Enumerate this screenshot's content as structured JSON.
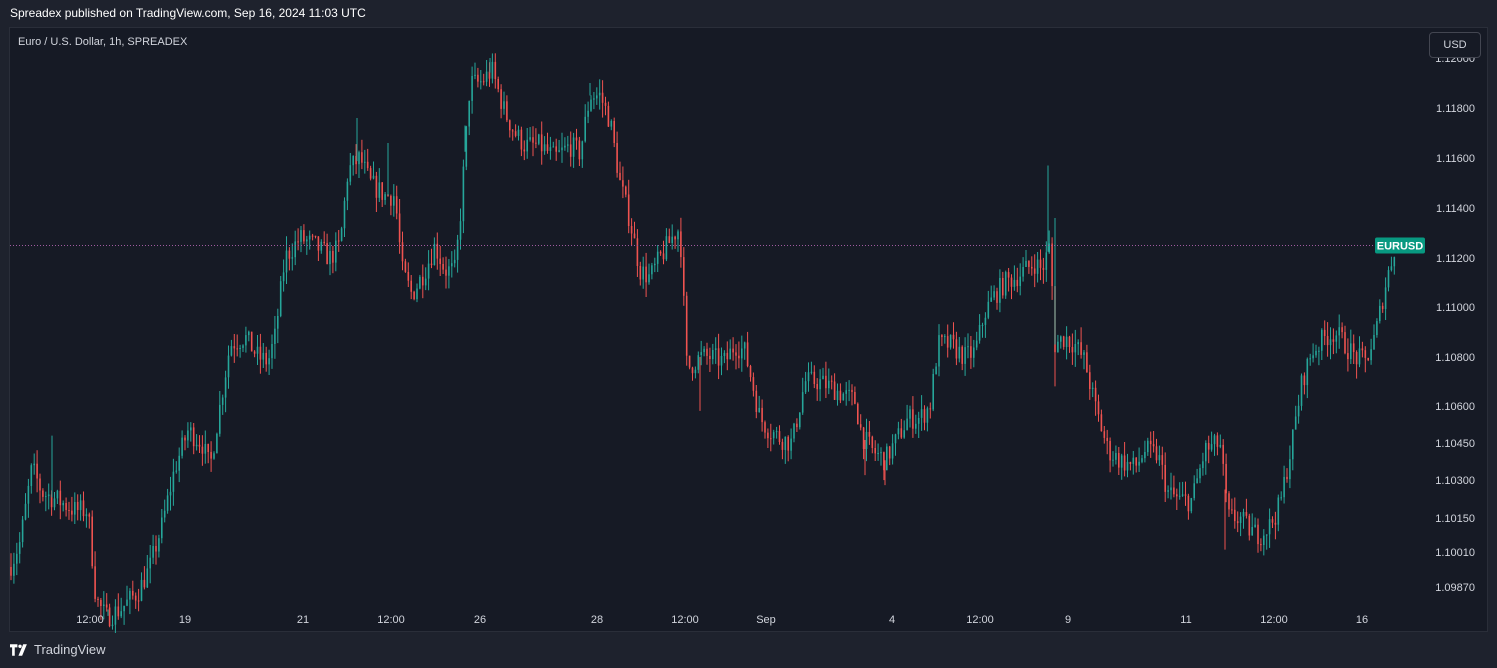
{
  "header": {
    "publisher": "Spreadex published on TradingView.com, Sep 16, 2024 11:03 UTC"
  },
  "symbol": {
    "label": "Euro / U.S. Dollar, 1h, SPREADEX"
  },
  "currency_button": {
    "label": "USD"
  },
  "footer": {
    "brand": "TradingView",
    "logo_icon": "tradingview-logo-icon"
  },
  "colors": {
    "up": "#26a69a",
    "down": "#ef5350",
    "background": "#161a25",
    "last_price_line": "#a05ba0",
    "last_price_tag": "#089981"
  },
  "chart_data": {
    "type": "candlestick",
    "title": "",
    "interval": "1h",
    "y_axis": {
      "position": "right",
      "tick_labels": [
        "1.12000",
        "1.11800",
        "1.11600",
        "1.11400",
        "1.11200",
        "1.11000",
        "1.10800",
        "1.10600",
        "1.10450",
        "1.10300",
        "1.10150",
        "1.10010",
        "1.09870"
      ],
      "tick_values": [
        1.12,
        1.118,
        1.116,
        1.114,
        1.112,
        1.11,
        1.108,
        1.106,
        1.1045,
        1.103,
        1.1015,
        1.1001,
        1.0987
      ],
      "range": [
        1.0985,
        1.1205
      ]
    },
    "x_axis": {
      "tick_labels": [
        "12:00",
        "19",
        "21",
        "12:00",
        "26",
        "28",
        "12:00",
        "Sep",
        "4",
        "12:00",
        "9",
        "11",
        "12:00",
        "16"
      ]
    },
    "grid": false,
    "last_price": {
      "symbol": "EURUSD",
      "value": 1.1125
    },
    "price_path": [
      [
        0,
        1.0995
      ],
      [
        10,
        1.1005
      ],
      [
        22,
        1.1035
      ],
      [
        32,
        1.1025
      ],
      [
        48,
        1.1022
      ],
      [
        65,
        1.1018
      ],
      [
        78,
        1.1018
      ],
      [
        86,
        1.0982
      ],
      [
        96,
        1.0975
      ],
      [
        110,
        1.0978
      ],
      [
        128,
        1.0985
      ],
      [
        140,
        1.0995
      ],
      [
        152,
        1.1012
      ],
      [
        165,
        1.1035
      ],
      [
        178,
        1.105
      ],
      [
        192,
        1.1045
      ],
      [
        200,
        1.1035
      ],
      [
        210,
        1.106
      ],
      [
        220,
        1.1085
      ],
      [
        235,
        1.1088
      ],
      [
        248,
        1.108
      ],
      [
        258,
        1.1078
      ],
      [
        265,
        1.1088
      ],
      [
        275,
        1.112
      ],
      [
        290,
        1.1128
      ],
      [
        305,
        1.1125
      ],
      [
        320,
        1.112
      ],
      [
        330,
        1.1125
      ],
      [
        338,
        1.1155
      ],
      [
        350,
        1.116
      ],
      [
        360,
        1.115
      ],
      [
        375,
        1.1145
      ],
      [
        385,
        1.1145
      ],
      [
        392,
        1.1115
      ],
      [
        402,
        1.1105
      ],
      [
        415,
        1.1115
      ],
      [
        425,
        1.1125
      ],
      [
        435,
        1.1115
      ],
      [
        445,
        1.1115
      ],
      [
        450,
        1.1135
      ],
      [
        460,
        1.119
      ],
      [
        470,
        1.119
      ],
      [
        482,
        1.1195
      ],
      [
        495,
        1.1178
      ],
      [
        505,
        1.117
      ],
      [
        515,
        1.1165
      ],
      [
        530,
        1.1165
      ],
      [
        545,
        1.116
      ],
      [
        560,
        1.1165
      ],
      [
        570,
        1.1162
      ],
      [
        580,
        1.1185
      ],
      [
        590,
        1.1185
      ],
      [
        600,
        1.1175
      ],
      [
        610,
        1.115
      ],
      [
        620,
        1.1135
      ],
      [
        630,
        1.1115
      ],
      [
        640,
        1.1112
      ],
      [
        650,
        1.112
      ],
      [
        665,
        1.113
      ],
      [
        670,
        1.1132
      ],
      [
        677,
        1.1075
      ],
      [
        690,
        1.108
      ],
      [
        700,
        1.108
      ],
      [
        715,
        1.1078
      ],
      [
        725,
        1.1085
      ],
      [
        735,
        1.1082
      ],
      [
        742,
        1.107
      ],
      [
        750,
        1.1055
      ],
      [
        760,
        1.105
      ],
      [
        770,
        1.1047
      ],
      [
        782,
        1.1045
      ],
      [
        795,
        1.107
      ],
      [
        808,
        1.107
      ],
      [
        820,
        1.1068
      ],
      [
        832,
        1.1065
      ],
      [
        845,
        1.1062
      ],
      [
        852,
        1.1048
      ],
      [
        862,
        1.1042
      ],
      [
        875,
        1.1038
      ],
      [
        885,
        1.1045
      ],
      [
        898,
        1.1055
      ],
      [
        910,
        1.1055
      ],
      [
        920,
        1.106
      ],
      [
        928,
        1.1085
      ],
      [
        940,
        1.1085
      ],
      [
        955,
        1.108
      ],
      [
        965,
        1.1082
      ],
      [
        975,
        1.1098
      ],
      [
        985,
        1.1105
      ],
      [
        995,
        1.111
      ],
      [
        1005,
        1.1112
      ],
      [
        1015,
        1.1115
      ],
      [
        1025,
        1.1118
      ],
      [
        1032,
        1.1115
      ],
      [
        1040,
        1.1125
      ],
      [
        1045,
        1.1085
      ],
      [
        1055,
        1.1088
      ],
      [
        1065,
        1.1085
      ],
      [
        1075,
        1.1078
      ],
      [
        1085,
        1.106
      ],
      [
        1098,
        1.1042
      ],
      [
        1110,
        1.1038
      ],
      [
        1125,
        1.1035
      ],
      [
        1135,
        1.1042
      ],
      [
        1148,
        1.104
      ],
      [
        1158,
        1.1025
      ],
      [
        1170,
        1.1022
      ],
      [
        1182,
        1.1022
      ],
      [
        1195,
        1.1042
      ],
      [
        1210,
        1.1045
      ],
      [
        1218,
        1.1015
      ],
      [
        1230,
        1.1015
      ],
      [
        1240,
        1.101
      ],
      [
        1250,
        1.1008
      ],
      [
        1260,
        1.1012
      ],
      [
        1270,
        1.102
      ],
      [
        1282,
        1.1045
      ],
      [
        1292,
        1.107
      ],
      [
        1302,
        1.1082
      ],
      [
        1315,
        1.1088
      ],
      [
        1325,
        1.109
      ],
      [
        1335,
        1.1085
      ],
      [
        1345,
        1.108
      ],
      [
        1355,
        1.1078
      ],
      [
        1365,
        1.1088
      ],
      [
        1375,
        1.1108
      ],
      [
        1385,
        1.1125
      ]
    ],
    "extreme_wicks": [
      [
        42,
        1.1048
      ],
      [
        98,
        1.0978
      ],
      [
        347,
        1.1176
      ],
      [
        378,
        1.1166
      ],
      [
        455,
        1.1173
      ],
      [
        480,
        1.12
      ],
      [
        580,
        1.119
      ],
      [
        690,
        1.1058
      ],
      [
        1038,
        1.1157
      ],
      [
        1045,
        1.1136
      ],
      [
        1045,
        1.1068
      ],
      [
        1215,
        1.1002
      ],
      [
        875,
        1.1028
      ],
      [
        855,
        1.1032
      ]
    ]
  }
}
